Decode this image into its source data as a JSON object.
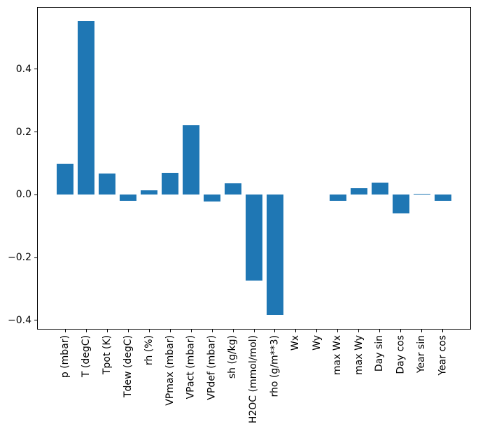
{
  "chart_data": {
    "type": "bar",
    "title": "",
    "xlabel": "",
    "ylabel": "",
    "categories": [
      "p (mbar)",
      "T (degC)",
      "Tpot (K)",
      "Tdew (degC)",
      "rh (%)",
      "VPmax (mbar)",
      "VPact (mbar)",
      "VPdef (mbar)",
      "sh (g/kg)",
      "H2OC (mmol/mol)",
      "rho (g/m**3)",
      "Wx",
      "Wy",
      "max Wx",
      "max Wy",
      "Day sin",
      "Day cos",
      "Year sin",
      "Year cos"
    ],
    "values": [
      0.1,
      0.553,
      0.067,
      -0.018,
      0.015,
      0.071,
      0.222,
      -0.022,
      0.037,
      -0.274,
      -0.382,
      0.0,
      0.0,
      -0.019,
      0.02,
      0.039,
      -0.059,
      0.003,
      -0.018
    ],
    "bar_color": "#1f77b4",
    "axis_color": "#000000",
    "background_color": "#ffffff",
    "ylim": [
      -0.429,
      0.598
    ],
    "yticks": [
      0.4,
      0.2,
      0.0,
      -0.2,
      -0.4
    ],
    "ytick_labels": [
      "0.4",
      "0.2",
      "0.0",
      "−0.2",
      "−0.4"
    ],
    "grid": false
  }
}
